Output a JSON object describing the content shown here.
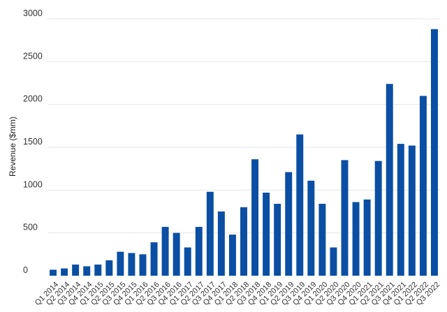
{
  "chart_data": {
    "type": "bar",
    "title": "",
    "xlabel": "",
    "ylabel": "Revenue ($mm)",
    "ylim": [
      0,
      3000
    ],
    "yticks": [
      0,
      500,
      1000,
      1500,
      2000,
      2500,
      3000
    ],
    "grid": true,
    "bar_color": "#0a4fa3",
    "categories": [
      "Q1 2014",
      "Q2 2014",
      "Q3 2014",
      "Q4 2014",
      "Q1 2015",
      "Q2 2015",
      "Q3 2015",
      "Q4 2015",
      "Q1 2016",
      "Q2 2016",
      "Q3 2016",
      "Q4 2016",
      "Q1 2017",
      "Q2 2017",
      "Q3 2017",
      "Q4 2017",
      "Q1 2018",
      "Q2 2018",
      "Q3 2018",
      "Q4 2018",
      "Q1 2019",
      "Q2 2019",
      "Q3 2019",
      "Q4 2019",
      "Q1 2020",
      "Q2 2020",
      "Q3 2020",
      "Q4 2020",
      "Q1 2021",
      "Q2 2021",
      "Q3 2021",
      "Q4 2021",
      "Q1 2022",
      "Q2 2022",
      "Q3 2022"
    ],
    "values": [
      70,
      85,
      130,
      110,
      130,
      180,
      280,
      265,
      250,
      390,
      570,
      500,
      330,
      570,
      980,
      750,
      480,
      800,
      1360,
      970,
      840,
      1210,
      1650,
      1110,
      840,
      330,
      1350,
      860,
      890,
      1340,
      2240,
      1540,
      1520,
      2100,
      2880
    ]
  }
}
